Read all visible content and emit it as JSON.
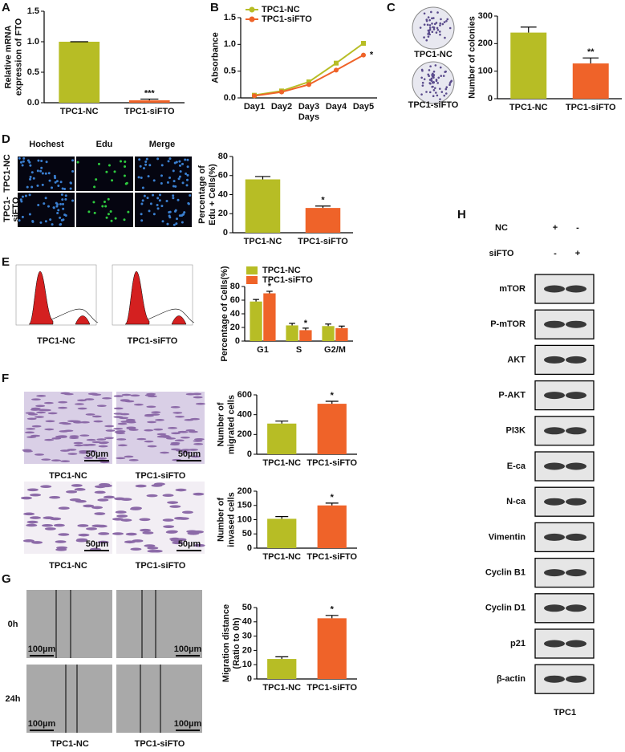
{
  "panel_letters": [
    "A",
    "B",
    "C",
    "D",
    "E",
    "F",
    "G",
    "H"
  ],
  "chart_data": [
    {
      "type": "bar",
      "ylabel": [
        "Relative mRNA",
        "expression of FTO"
      ],
      "categories": [
        "TPC1-NC",
        "TPC1-siFTO"
      ],
      "values": [
        1.0,
        0.04
      ],
      "errors": [
        0.0,
        0.02
      ],
      "colors": [
        "#b7bd25",
        "#ef6329"
      ],
      "ylim": [
        0,
        1.5
      ],
      "yticks": [
        {
          "value": 0,
          "label": "0.0"
        },
        0.5,
        {
          "value": 1,
          "label": "1.0"
        },
        1.5
      ],
      "significance": [
        {
          "category": "TPC1-siFTO",
          "label": "***"
        }
      ]
    },
    {
      "type": "line",
      "ylabel": [
        "Absorbance"
      ],
      "xlabel": "Days",
      "categories": [
        "Day1",
        "Day2",
        "Day3",
        "Day4",
        "Day5"
      ],
      "series": [
        {
          "name": "TPC1-NC",
          "color": "#b7bd25",
          "values": [
            0.05,
            0.13,
            0.3,
            0.65,
            1.02
          ]
        },
        {
          "name": "TPC1-siFTO",
          "color": "#ef6329",
          "values": [
            0.04,
            0.11,
            0.25,
            0.52,
            0.8
          ]
        }
      ],
      "ylim": [
        0,
        1.5
      ],
      "yticks": [
        {
          "value": 0,
          "label": "0.0"
        },
        0.5,
        {
          "value": 1,
          "label": "1.0"
        },
        1.5
      ],
      "significance": [
        {
          "category": "Day5",
          "series": "TPC1-siFTO",
          "label": "*"
        }
      ]
    },
    {
      "type": "bar",
      "ylabel": [
        "Number of colonies"
      ],
      "categories": [
        "TPC1-NC",
        "TPC1-siFTO"
      ],
      "values": [
        240,
        128
      ],
      "errors": [
        20,
        20
      ],
      "colors": [
        "#b7bd25",
        "#ef6329"
      ],
      "ylim": [
        0,
        300
      ],
      "yticks": [
        0,
        100,
        200,
        300
      ],
      "significance": [
        {
          "category": "TPC1-siFTO",
          "label": "**"
        }
      ]
    },
    {
      "type": "bar",
      "ylabel": [
        "Percentage of",
        "Edu + Cells(%)"
      ],
      "categories": [
        "TPC1-NC",
        "TPC1-siFTO"
      ],
      "values": [
        56,
        26
      ],
      "errors": [
        3,
        2
      ],
      "colors": [
        "#b7bd25",
        "#ef6329"
      ],
      "ylim": [
        0,
        80
      ],
      "yticks": [
        0,
        20,
        40,
        60,
        80
      ],
      "significance": [
        {
          "category": "TPC1-siFTO",
          "label": "*"
        }
      ]
    },
    {
      "type": "grouped_bar",
      "ylabel": [
        "Percentage of Cells(%)"
      ],
      "categories": [
        "G1",
        "S",
        "G2/M"
      ],
      "series": [
        {
          "name": "TPC1-NC",
          "color": "#b7bd25",
          "values": [
            58,
            23,
            22
          ],
          "errors": [
            3,
            3,
            3
          ]
        },
        {
          "name": "TPC1-siFTO",
          "color": "#ef6329",
          "values": [
            70,
            16,
            19
          ],
          "errors": [
            3,
            3,
            3
          ]
        }
      ],
      "ylim": [
        0,
        80
      ],
      "yticks": [
        0,
        20,
        40,
        60,
        80
      ],
      "significance": [
        {
          "category": "G1",
          "series": "TPC1-siFTO",
          "label": "*"
        },
        {
          "category": "S",
          "series": "TPC1-siFTO",
          "label": "*"
        }
      ]
    },
    {
      "type": "bar",
      "ylabel": [
        "Number of",
        "migrated cells"
      ],
      "categories": [
        "TPC1-NC",
        "TPC1-siFTO"
      ],
      "values": [
        310,
        510
      ],
      "errors": [
        25,
        25
      ],
      "colors": [
        "#b7bd25",
        "#ef6329"
      ],
      "ylim": [
        0,
        600
      ],
      "yticks": [
        0,
        200,
        400,
        600
      ],
      "significance": [
        {
          "category": "TPC1-siFTO",
          "label": "*"
        }
      ]
    },
    {
      "type": "bar",
      "ylabel": [
        "Number of",
        "invased cells"
      ],
      "categories": [
        "TPC1-NC",
        "TPC1-siFTO"
      ],
      "values": [
        103,
        150
      ],
      "errors": [
        8,
        8
      ],
      "colors": [
        "#b7bd25",
        "#ef6329"
      ],
      "ylim": [
        0,
        200
      ],
      "yticks": [
        0,
        50,
        100,
        150,
        200
      ],
      "significance": [
        {
          "category": "TPC1-siFTO",
          "label": "*"
        }
      ]
    },
    {
      "type": "bar",
      "ylabel": [
        "Migration distance",
        "(Ratio to 0h)"
      ],
      "categories": [
        "TPC1-NC",
        "TPC1-siFTO"
      ],
      "values": [
        14,
        42.5
      ],
      "errors": [
        1.5,
        2
      ],
      "colors": [
        "#b7bd25",
        "#ef6329"
      ],
      "ylim": [
        0,
        50
      ],
      "yticks": [
        0,
        10,
        20,
        30,
        40,
        50
      ],
      "significance": [
        {
          "category": "TPC1-siFTO",
          "label": "*"
        }
      ]
    }
  ],
  "figure": {
    "colony_images": [
      "TPC1-NC",
      "TPC1-siFTO"
    ],
    "edu_images": {
      "columns": [
        "Hochest",
        "Edu",
        "Merge"
      ],
      "rows": [
        [
          "TPC1-NC"
        ],
        [
          "TPC1-",
          "siFTO"
        ]
      ]
    },
    "flow_images": [
      "TPC1-NC",
      "TPC1-siFTO"
    ],
    "migration_images": {
      "labels": [
        "TPC1-NC",
        "TPC1-siFTO"
      ],
      "scale_bars": [
        "50µm",
        "50µm"
      ]
    },
    "invasion_images": {
      "labels": [
        "TPC1-NC",
        "TPC1-siFTO"
      ],
      "scale_bars": [
        "50µm",
        "50µm"
      ]
    },
    "wound_images": {
      "rows": [
        "0h",
        "24h"
      ],
      "labels": [
        "TPC1-NC",
        "TPC1-siFTO"
      ],
      "scale_bars": [
        "100µm",
        "100µm",
        "100µm",
        "100µm"
      ]
    },
    "blot": {
      "conditions": [
        {
          "name": "NC",
          "marks": [
            "+",
            "-"
          ]
        },
        {
          "name": "siFTO",
          "marks": [
            "-",
            "+"
          ]
        }
      ],
      "proteins": [
        "mTOR",
        "P-mTOR",
        "AKT",
        "P-AKT",
        "PI3K",
        "E-ca",
        "N-ca",
        "Vimentin",
        "Cyclin B1",
        "Cyclin D1",
        "p21",
        "β-actin"
      ],
      "cell_line": "TPC1"
    }
  }
}
